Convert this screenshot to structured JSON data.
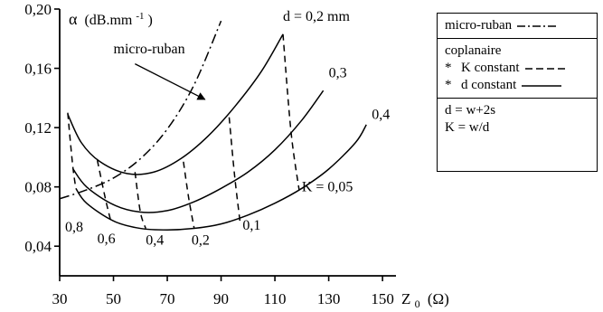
{
  "chart_data": {
    "type": "line",
    "ylabel": "α (dB.mm-1)",
    "ylabel_symbol": "α",
    "ylabel_unit": "(dB.mm",
    "ylabel_exp": "-1",
    "ylabel_close": ")",
    "xlabel_main": "Z",
    "xlabel_sub": "0",
    "xlabel_unit": "(Ω)",
    "xlim": [
      30,
      155
    ],
    "ylim": [
      0.02,
      0.2
    ],
    "xticks": [
      30,
      50,
      70,
      90,
      110,
      130,
      150
    ],
    "xtick_labels": [
      "30",
      "50",
      "70",
      "90",
      "110",
      "130",
      "150"
    ],
    "yticks": [
      0.04,
      0.08,
      0.12,
      0.16,
      0.2
    ],
    "ytick_labels": [
      "0,04",
      "0,08",
      "0,12",
      "0,16",
      "0,20"
    ],
    "series": [
      {
        "name": "micro-ruban",
        "style": "dashdot",
        "x": [
          30,
          40,
          50,
          60,
          70,
          80,
          90
        ],
        "y": [
          0.072,
          0.078,
          0.086,
          0.099,
          0.119,
          0.149,
          0.192
        ]
      },
      {
        "name": "d = 0,2 mm",
        "style": "solid",
        "x": [
          33,
          38,
          45,
          55,
          65,
          75,
          85,
          95,
          105,
          113
        ],
        "y": [
          0.129,
          0.11,
          0.097,
          0.089,
          0.09,
          0.099,
          0.114,
          0.134,
          0.158,
          0.183
        ]
      },
      {
        "name": "0,3",
        "style": "solid",
        "x": [
          35,
          40,
          50,
          60,
          70,
          80,
          90,
          100,
          110,
          120,
          128
        ],
        "y": [
          0.092,
          0.08,
          0.068,
          0.063,
          0.064,
          0.07,
          0.079,
          0.09,
          0.105,
          0.125,
          0.145
        ]
      },
      {
        "name": "0,4",
        "style": "solid",
        "x": [
          36,
          40,
          50,
          60,
          70,
          80,
          90,
          100,
          110,
          120,
          130,
          140,
          144
        ],
        "y": [
          0.079,
          0.069,
          0.057,
          0.052,
          0.051,
          0.052,
          0.055,
          0.061,
          0.069,
          0.079,
          0.092,
          0.11,
          0.122
        ]
      },
      {
        "name": "K constant",
        "style": "dashed",
        "segments": [
          {
            "x": [
              33,
              34,
              35,
              36
            ],
            "y": [
              0.13,
              0.11,
              0.092,
              0.079
            ]
          },
          {
            "x": [
              44,
              47,
              49
            ],
            "y": [
              0.098,
              0.072,
              0.057
            ]
          },
          {
            "x": [
              58,
              60,
              62
            ],
            "y": [
              0.09,
              0.063,
              0.052
            ]
          },
          {
            "x": [
              76,
              78,
              80
            ],
            "y": [
              0.097,
              0.072,
              0.052
            ]
          },
          {
            "x": [
              93,
              95,
              97
            ],
            "y": [
              0.127,
              0.088,
              0.057
            ]
          },
          {
            "x": [
              113,
              116,
              119
            ],
            "y": [
              0.183,
              0.117,
              0.078
            ]
          }
        ]
      }
    ],
    "annotations": [
      {
        "text": "d = 0,2 mm",
        "x": 113,
        "y": 0.192
      },
      {
        "text": "0,3",
        "x": 130,
        "y": 0.154
      },
      {
        "text": "0,4",
        "x": 146,
        "y": 0.126
      },
      {
        "text": "K = 0,05",
        "x": 120,
        "y": 0.077
      },
      {
        "text": "0,1",
        "x": 98,
        "y": 0.051
      },
      {
        "text": "0,2",
        "x": 79,
        "y": 0.041
      },
      {
        "text": "0,4",
        "x": 62,
        "y": 0.041
      },
      {
        "text": "0,6",
        "x": 44,
        "y": 0.042
      },
      {
        "text": "0,8",
        "x": 32,
        "y": 0.05
      },
      {
        "text": "micro-ruban",
        "x": 50,
        "y": 0.17
      }
    ]
  },
  "legend": {
    "microstrip_label": "micro-ruban",
    "coplanar_title": "coplanaire",
    "star": "*",
    "k_constant_label": "K constant",
    "d_constant_label": "d constant",
    "def_d": "d = w+2s",
    "def_k": "K = w/d"
  }
}
